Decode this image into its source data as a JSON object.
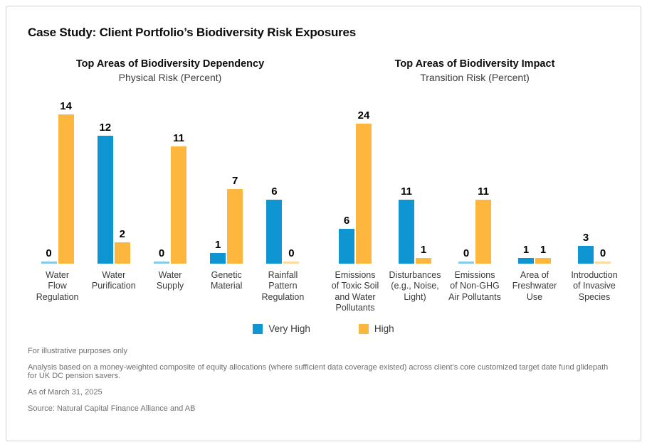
{
  "title": "Case Study: Client Portfolio’s Biodiversity Risk Exposures",
  "legend": {
    "items": [
      {
        "label": "Very High",
        "color": "#0f96d2"
      },
      {
        "label": "High",
        "color": "#fdb63e"
      }
    ]
  },
  "footnotes": [
    "For illustrative purposes only",
    "Analysis based on a money-weighted composite of equity allocations (where sufficient data coverage existed) across client’s core customized target date fund glidepath for UK DC pension savers.",
    "As of March 31, 2025",
    "Source: Natural Capital Finance Alliance and AB"
  ],
  "chart_data": [
    {
      "type": "bar",
      "title": "Top Areas of Biodiversity Dependency",
      "subtitle": "Physical Risk (Percent)",
      "categories": [
        "Water\nFlow\nRegulation",
        "Water\nPurification",
        "Water\nSupply",
        "Genetic\nMaterial",
        "Rainfall\nPattern\nRegulation"
      ],
      "series": [
        {
          "name": "Very High",
          "color": "#0f96d2",
          "values": [
            0,
            12,
            0,
            1,
            6
          ]
        },
        {
          "name": "High",
          "color": "#fdb63e",
          "values": [
            14,
            2,
            11,
            7,
            0
          ]
        }
      ],
      "ylim": [
        0,
        14
      ],
      "grid": false,
      "data_labels": true,
      "legend_position": "bottom-shared"
    },
    {
      "type": "bar",
      "title": "Top Areas of Biodiversity Impact",
      "subtitle": "Transition Risk (Percent)",
      "categories": [
        "Emissions\nof Toxic Soil\nand Water\nPollutants",
        "Disturbances\n(e.g., Noise,\nLight)",
        "Emissions\nof Non-GHG\nAir Pollutants",
        "Area of\nFreshwater\nUse",
        "Introduction\nof Invasive\nSpecies"
      ],
      "series": [
        {
          "name": "Very High",
          "color": "#0f96d2",
          "values": [
            6,
            11,
            0,
            1,
            3
          ]
        },
        {
          "name": "High",
          "color": "#fdb63e",
          "values": [
            24,
            1,
            11,
            1,
            0
          ]
        }
      ],
      "ylim": [
        0,
        24
      ],
      "grid": false,
      "data_labels": true,
      "legend_position": "bottom-shared"
    }
  ]
}
